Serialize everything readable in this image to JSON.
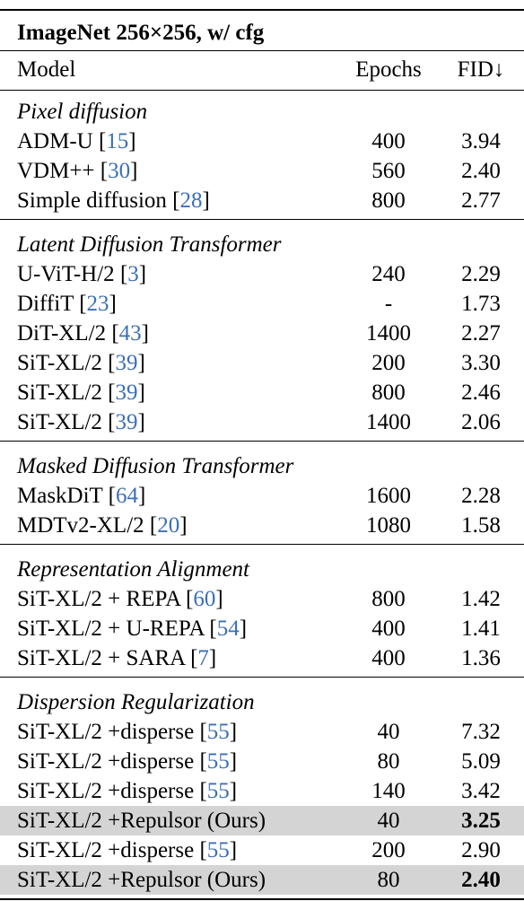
{
  "title": "ImageNet 256×256, w/ cfg",
  "header": {
    "model": "Model",
    "epochs": "Epochs",
    "fid": "FID↓"
  },
  "groups": [
    {
      "name": "Pixel diffusion",
      "rows": [
        {
          "model": "ADM-U",
          "cite": "15",
          "epochs": "400",
          "fid": "3.94"
        },
        {
          "model": "VDM++",
          "cite": "30",
          "epochs": "560",
          "fid": "2.40"
        },
        {
          "model": "Simple diffusion",
          "cite": "28",
          "epochs": "800",
          "fid": "2.77"
        }
      ]
    },
    {
      "name": "Latent Diffusion Transformer",
      "rows": [
        {
          "model": "U-ViT-H/2",
          "cite": "3",
          "epochs": "240",
          "fid": "2.29"
        },
        {
          "model": "DiffiT",
          "cite": "23",
          "epochs": "-",
          "fid": "1.73"
        },
        {
          "model": "DiT-XL/2",
          "cite": "43",
          "epochs": "1400",
          "fid": "2.27"
        },
        {
          "model": "SiT-XL/2",
          "cite": "39",
          "epochs": "200",
          "fid": "3.30"
        },
        {
          "model": "SiT-XL/2",
          "cite": "39",
          "epochs": "800",
          "fid": "2.46"
        },
        {
          "model": "SiT-XL/2",
          "cite": "39",
          "epochs": "1400",
          "fid": "2.06"
        }
      ]
    },
    {
      "name": "Masked Diffusion Transformer",
      "rows": [
        {
          "model": "MaskDiT",
          "cite": "64",
          "epochs": "1600",
          "fid": "2.28"
        },
        {
          "model": "MDTv2-XL/2",
          "cite": "20",
          "epochs": "1080",
          "fid": "1.58"
        }
      ]
    },
    {
      "name": "Representation Alignment",
      "rows": [
        {
          "model": "SiT-XL/2 + REPA",
          "cite": "60",
          "epochs": "800",
          "fid": "1.42"
        },
        {
          "model": "SiT-XL/2 + U-REPA",
          "cite": "54",
          "epochs": "400",
          "fid": "1.41"
        },
        {
          "model": "SiT-XL/2 + SARA",
          "cite": "7",
          "epochs": "400",
          "fid": "1.36"
        }
      ]
    },
    {
      "name": "Dispersion Regularization",
      "rows": [
        {
          "model": "SiT-XL/2 +disperse",
          "cite": "55",
          "epochs": "40",
          "fid": "7.32"
        },
        {
          "model": "SiT-XL/2 +disperse",
          "cite": "55",
          "epochs": "80",
          "fid": "5.09"
        },
        {
          "model": "SiT-XL/2 +disperse",
          "cite": "55",
          "epochs": "140",
          "fid": "3.42"
        },
        {
          "model": "SiT-XL/2 +Repulsor (Ours)",
          "cite": "",
          "epochs": "40",
          "fid": "3.25",
          "highlight": true
        },
        {
          "model": "SiT-XL/2 +disperse",
          "cite": "55",
          "epochs": "200",
          "fid": "2.90"
        },
        {
          "model": "SiT-XL/2 +Repulsor (Ours)",
          "cite": "",
          "epochs": "80",
          "fid": "2.40",
          "highlight": true
        }
      ]
    }
  ]
}
